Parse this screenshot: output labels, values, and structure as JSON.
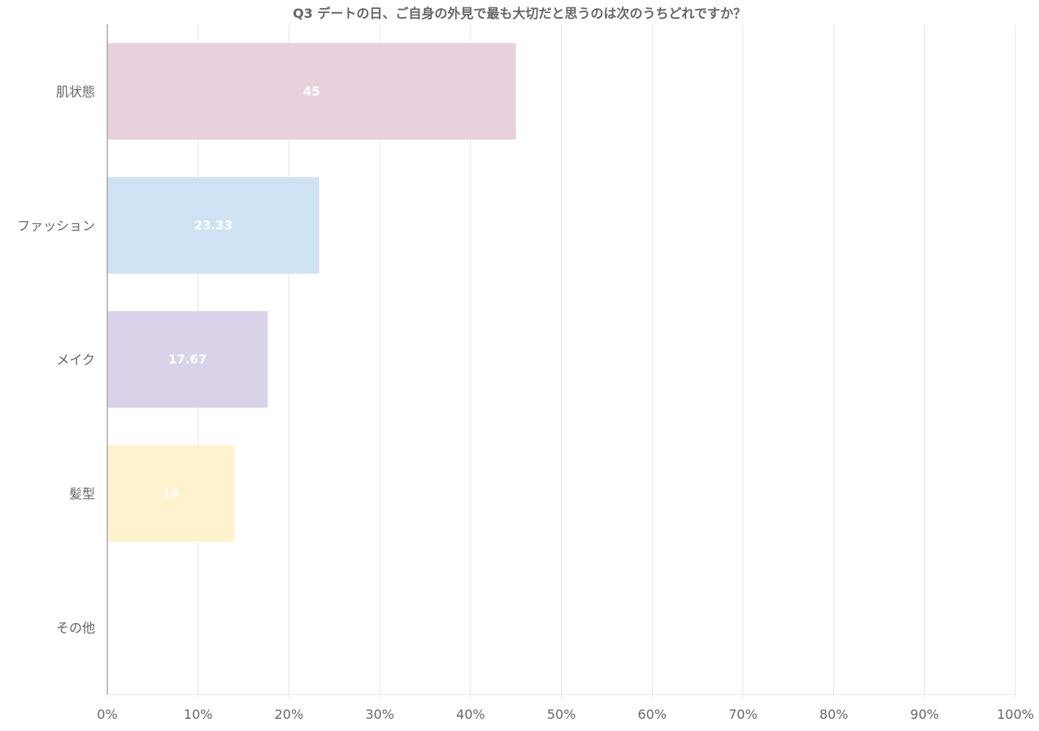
{
  "chart_data": {
    "type": "bar",
    "orientation": "horizontal",
    "title": "Q3 デートの日、ご自身の外見で最も大切だと思うのは次のうちどれですか？",
    "categories": [
      "肌状態",
      "ファッション",
      "メイク",
      "髪型",
      "その他"
    ],
    "values": [
      45,
      23.33,
      17.67,
      14,
      0
    ],
    "data_labels": [
      "45",
      "23.33",
      "17.67",
      "14",
      ""
    ],
    "bar_colors": [
      "#e8d1dc",
      "#cfe2f3",
      "#d9d2e9",
      "#fff2cc",
      "#e6e6e6"
    ],
    "xlim": [
      0,
      100
    ],
    "x_ticks": [
      0,
      10,
      20,
      30,
      40,
      50,
      60,
      70,
      80,
      90,
      100
    ],
    "x_tick_labels": [
      "0%",
      "10%",
      "20%",
      "30%",
      "40%",
      "50%",
      "60%",
      "70%",
      "80%",
      "90%",
      "100%"
    ],
    "xlabel": "",
    "ylabel": "",
    "grid": true,
    "legend": "none"
  },
  "colors": {
    "grid": "#e6e6e6",
    "axis": "#aaaaaa",
    "text": "#666666",
    "data_label": "#ffffff"
  }
}
